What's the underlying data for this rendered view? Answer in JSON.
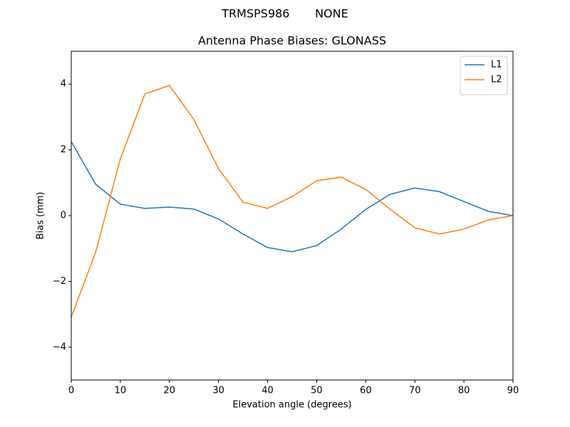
{
  "chart_data": {
    "type": "line",
    "suptitle": "TRMSPS986       NONE",
    "title": "Antenna Phase Biases: GLONASS",
    "xlabel": "Elevation angle (degrees)",
    "ylabel": "Bias (mm)",
    "x": [
      0,
      5,
      10,
      15,
      20,
      25,
      30,
      35,
      40,
      45,
      50,
      55,
      60,
      65,
      70,
      75,
      80,
      85,
      90
    ],
    "series": [
      {
        "name": "L1",
        "color": "#1f77b4",
        "values": [
          2.25,
          0.95,
          0.35,
          0.22,
          0.26,
          0.2,
          -0.1,
          -0.56,
          -0.97,
          -1.1,
          -0.91,
          -0.41,
          0.19,
          0.65,
          0.84,
          0.73,
          0.43,
          0.13,
          0
        ]
      },
      {
        "name": "L2",
        "color": "#ff7f0e",
        "values": [
          -3.09,
          -1.1,
          1.73,
          3.7,
          3.96,
          2.92,
          1.43,
          0.41,
          0.22,
          0.58,
          1.06,
          1.17,
          0.8,
          0.19,
          -0.37,
          -0.56,
          -0.41,
          -0.13,
          0
        ]
      }
    ],
    "xlim": [
      0,
      90
    ],
    "xticks": [
      0,
      10,
      20,
      30,
      40,
      50,
      60,
      70,
      80,
      90
    ],
    "ylim": [
      -5,
      5
    ],
    "yticks": [
      {
        "value": -4,
        "label": "−4"
      },
      {
        "value": -2,
        "label": "−2"
      },
      0,
      2,
      4
    ],
    "legend": "upper right"
  }
}
